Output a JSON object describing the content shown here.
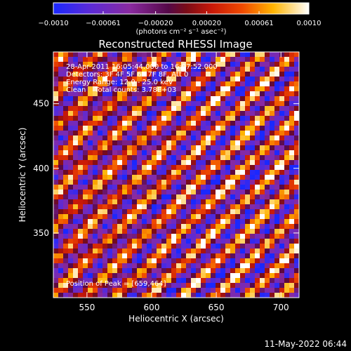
{
  "colorbar": {
    "tick_labels": [
      "−0.0010",
      "−0.00061",
      "−0.00020",
      "0.00020",
      "0.00061",
      "0.0010"
    ],
    "tick_values": [
      -0.001,
      -0.00061,
      -0.0002,
      0.0002,
      0.00061,
      0.001
    ],
    "units": "(photons cm⁻² s⁻¹ asec⁻²)",
    "range": [
      -0.001,
      0.001
    ]
  },
  "chart_data": {
    "type": "heatmap",
    "title": "Reconstructed RHESSI Image",
    "xlabel": "Heliocentric X (arcsec)",
    "ylabel": "Heliocentric Y (arcsec)",
    "xlim": [
      524,
      714
    ],
    "ylim": [
      300,
      490
    ],
    "x_ticks": [
      550,
      600,
      650,
      700
    ],
    "y_ticks": [
      350,
      400,
      450
    ],
    "colormap": "heat",
    "peak": [
      659,
      464
    ],
    "annotations": [
      "28-Apr-2011 16:05:44.000 to 16:07:52.000",
      "Detectors: 3F 4F 5F 6F 7F 8F, Att 0",
      "Energy Range: 12.0 - 25.0 keV",
      "Clean    Total counts: 3.78E+03"
    ],
    "peak_label": "Position of Peak = [659,464]"
  },
  "footer": {
    "timestamp": "11-May-2022 06:44"
  }
}
